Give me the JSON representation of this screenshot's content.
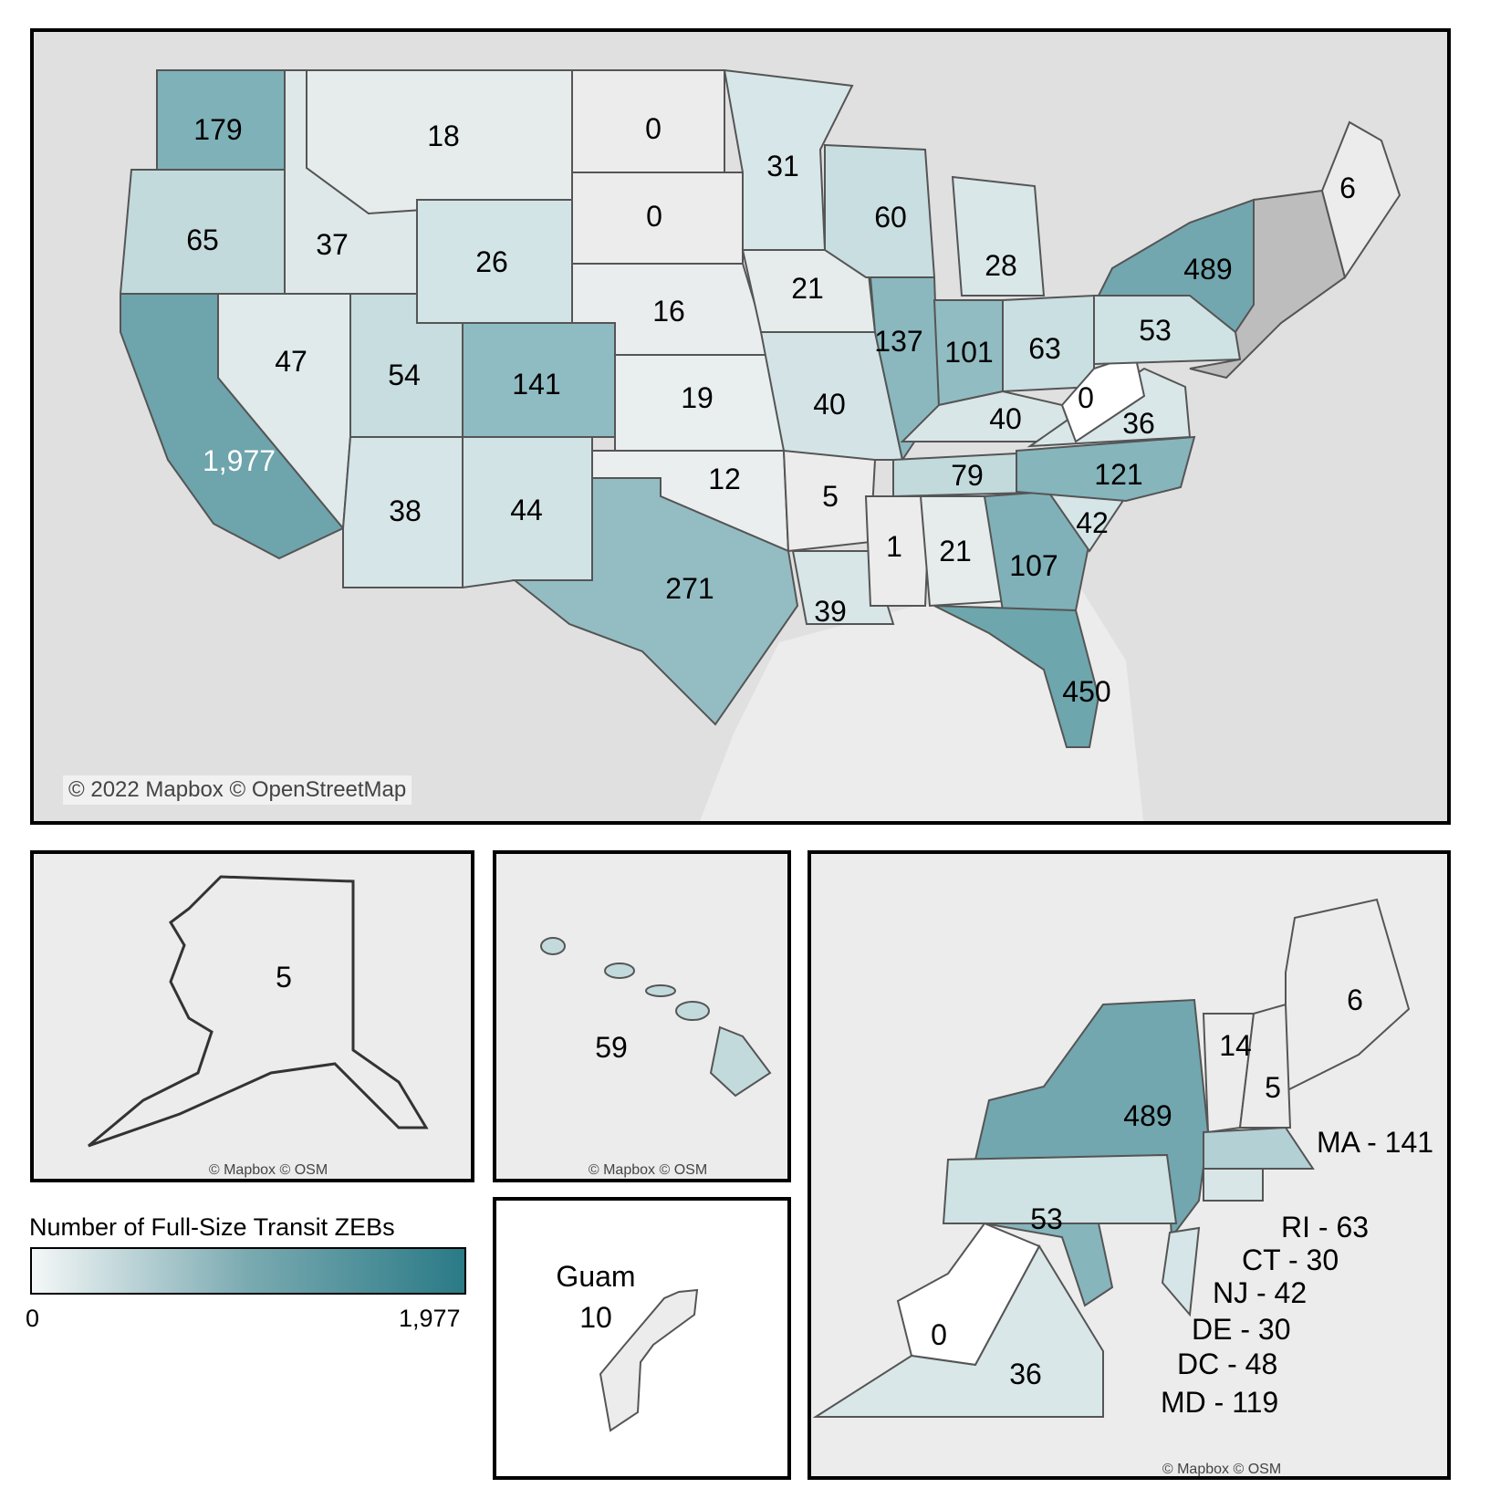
{
  "map": {
    "main_credit": "© 2022 Mapbox © OpenStreetMap",
    "inset_credit": "© Mapbox © OSM"
  },
  "states": {
    "wa": "179",
    "or": "65",
    "ca": "1,977",
    "id": "37",
    "mt": "18",
    "nv": "47",
    "ut": "54",
    "wy": "26",
    "co": "141",
    "az": "38",
    "nm": "44",
    "nd": "0",
    "sd": "0",
    "ne": "16",
    "ks": "19",
    "ok": "12",
    "tx": "271",
    "mn": "31",
    "ia": "21",
    "mo": "40",
    "ar": "5",
    "la": "39",
    "wi": "60",
    "il": "137",
    "mi": "28",
    "in": "101",
    "oh": "63",
    "ky": "40",
    "tn": "79",
    "ms": "1",
    "al": "21",
    "ga": "107",
    "fl": "450",
    "sc": "42",
    "nc": "121",
    "va": "36",
    "wv": "0",
    "pa": "53",
    "ny": "489",
    "me": "6"
  },
  "insets": {
    "alaska": "5",
    "hawaii": "59",
    "guam_name": "Guam",
    "guam_value": "10",
    "ne": {
      "ny": "489",
      "pa": "53",
      "vt": "14",
      "nh": "5",
      "me": "6",
      "wv": "0",
      "va": "36",
      "list": [
        "MA - 141",
        "RI - 63",
        "CT - 30",
        "NJ - 42",
        "DE - 30",
        "DC - 48",
        "MD - 119"
      ]
    }
  },
  "legend": {
    "title": "Number of Full-Size Transit ZEBs",
    "min": "0",
    "max": "1,977",
    "color_low": "#f4f7f7",
    "color_high": "#2a7a86"
  }
}
